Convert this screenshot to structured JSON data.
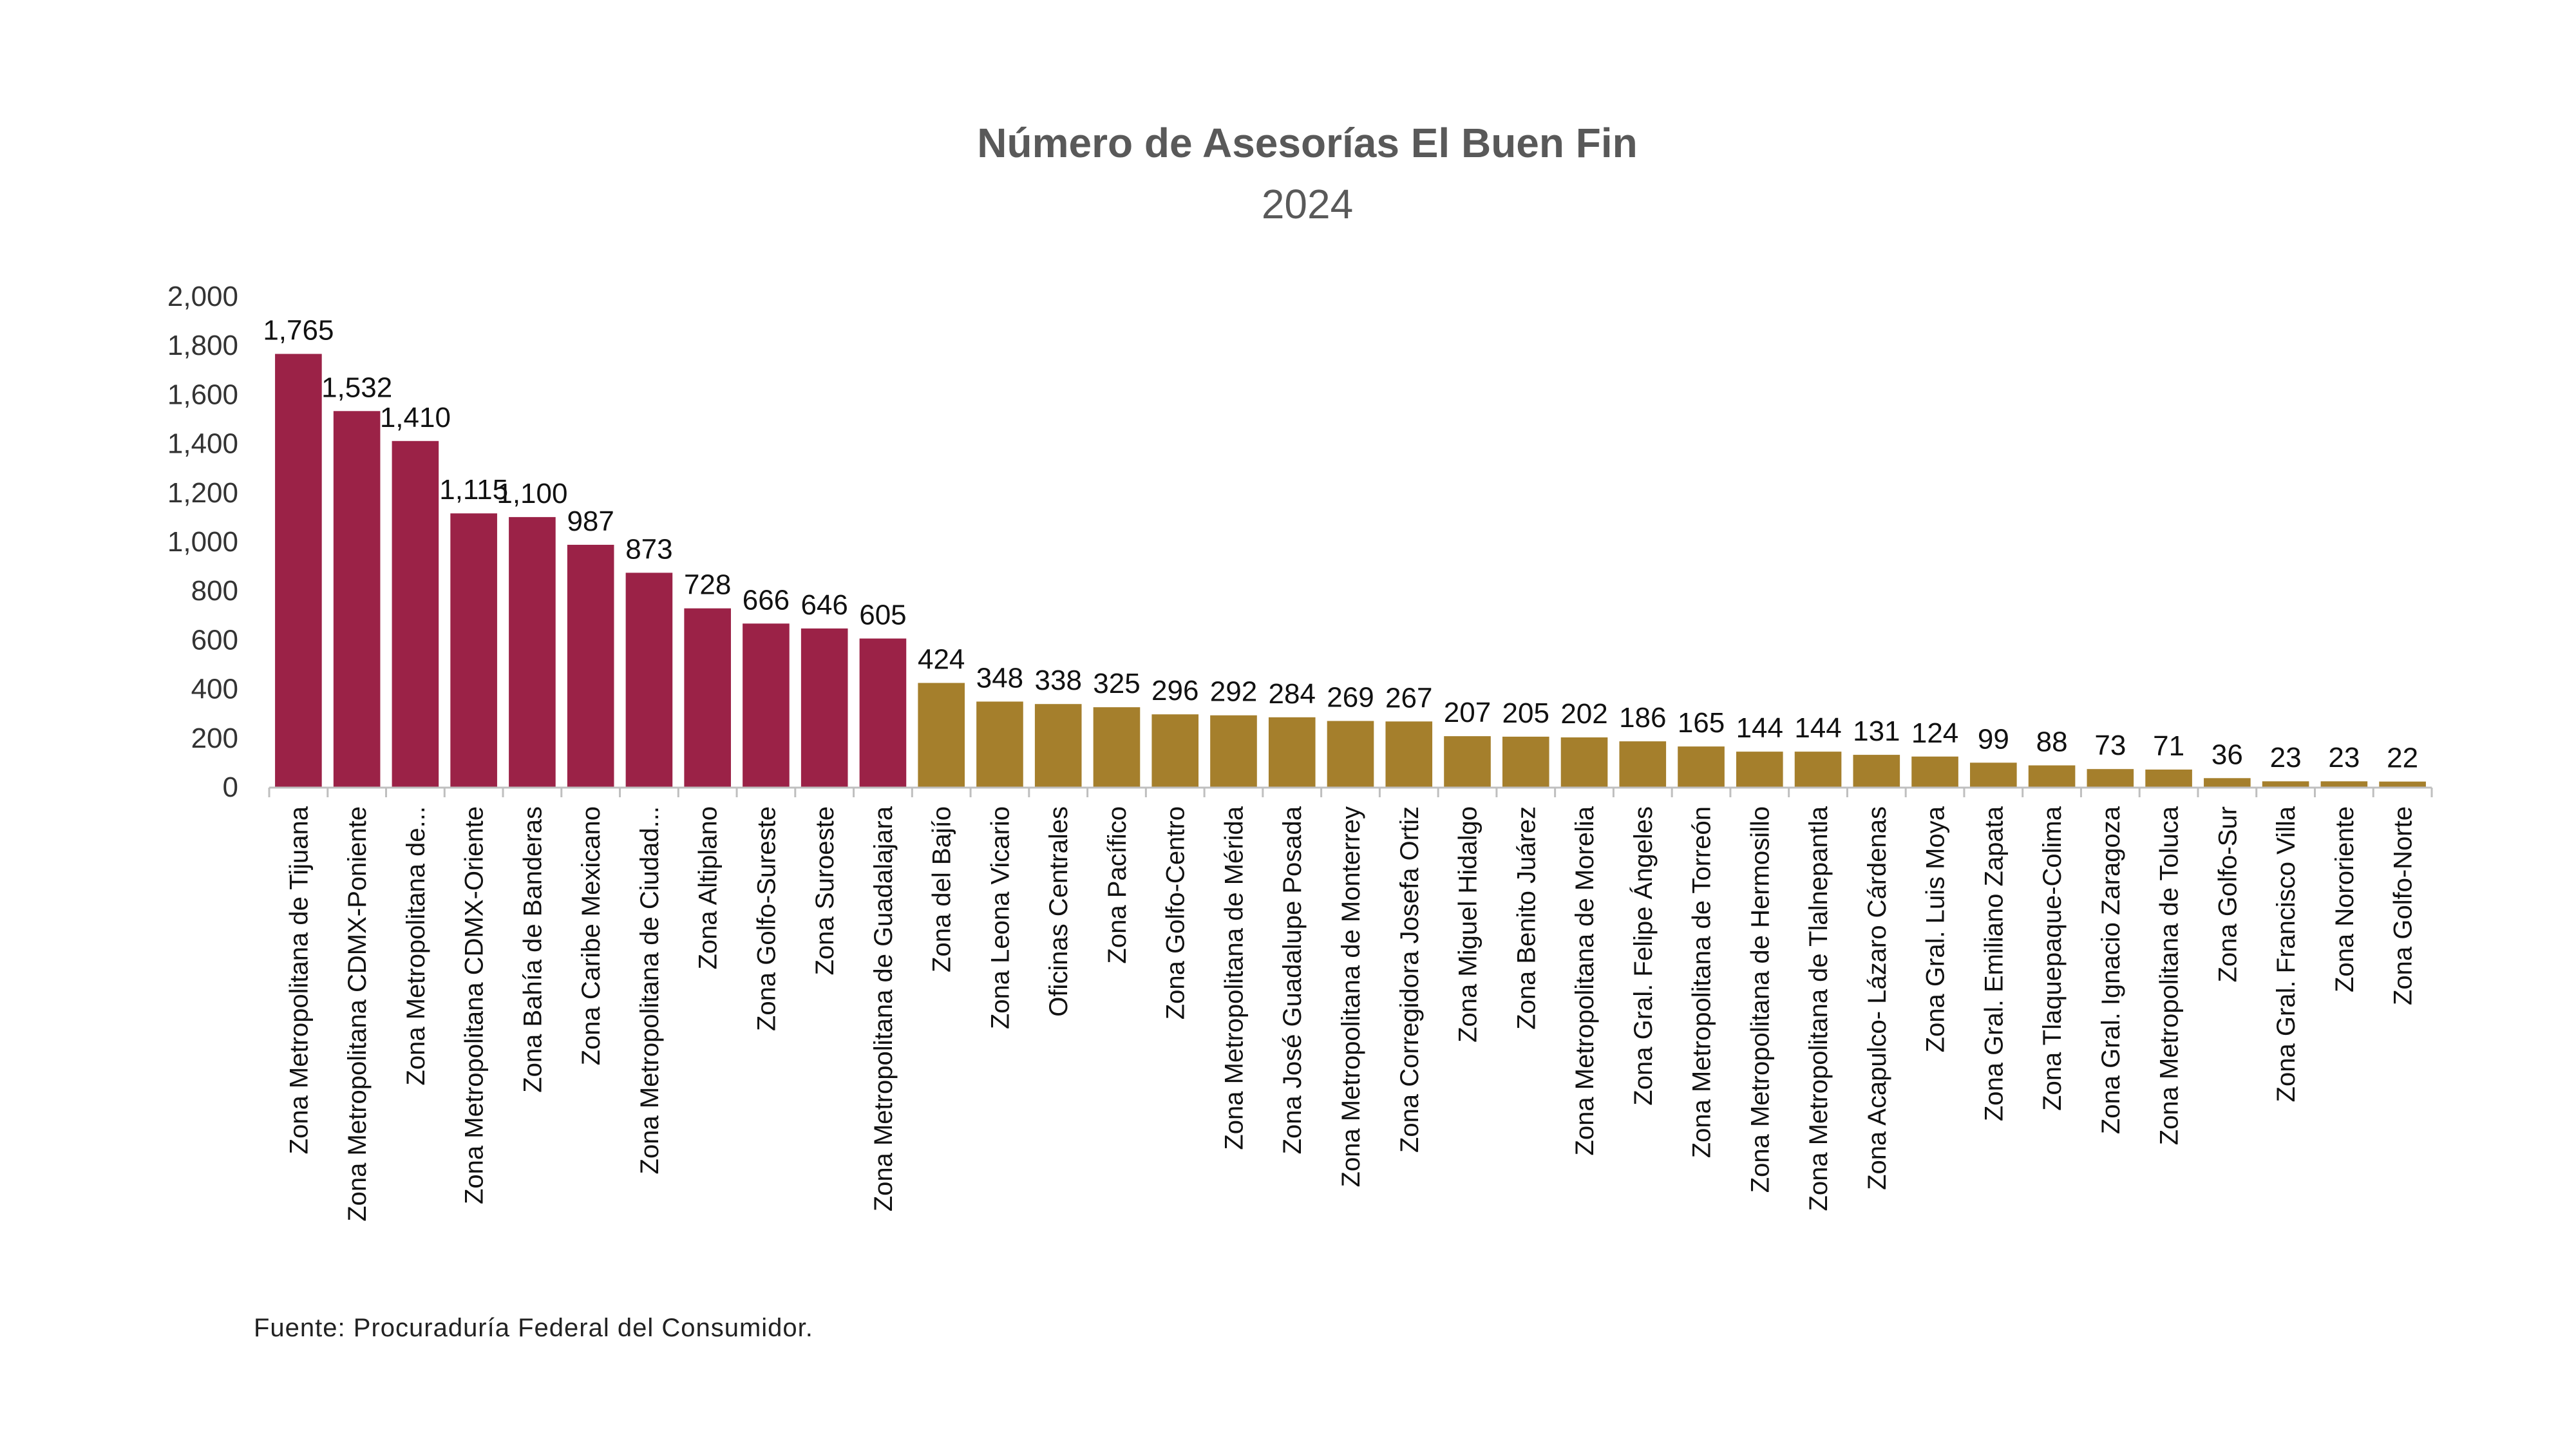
{
  "chart_data": {
    "type": "bar",
    "title": "Número de Asesorías El Buen Fin",
    "subtitle": "2024",
    "xlabel": "",
    "ylabel": "",
    "ylim": [
      0,
      2000
    ],
    "yticks": [
      "0",
      "200",
      "400",
      "600",
      "800",
      "1,000",
      "1,200",
      "1,400",
      "1,600",
      "1,800",
      "2,000"
    ],
    "grid": false,
    "colors": {
      "highlight": "#9b2247",
      "standard": "#a57f2c"
    },
    "categories": [
      "Zona Metropolitana de Tijuana",
      "Zona Metropolitana CDMX-Poniente",
      "Zona Metropolitana de...",
      "Zona Metropolitana CDMX-Oriente",
      "Zona Bahía de Banderas",
      "Zona Caribe Mexicano",
      "Zona Metropolitana de Ciudad...",
      "Zona Altiplano",
      "Zona Golfo-Sureste",
      "Zona Suroeste",
      "Zona Metropolitana de Guadalajara",
      "Zona del Bajío",
      "Zona Leona Vicario",
      "Oficinas Centrales",
      "Zona Pacífico",
      "Zona Golfo-Centro",
      "Zona Metropolitana de Mérida",
      "Zona José Guadalupe Posada",
      "Zona Metropolitana de Monterrey",
      "Zona Corregidora Josefa Ortiz",
      "Zona Miguel Hidalgo",
      "Zona Benito Juárez",
      "Zona Metropolitana de Morelia",
      "Zona Gral. Felipe Ángeles",
      "Zona Metropolitana de Torreón",
      "Zona Metropolitana de Hermosillo",
      "Zona Metropolitana de Tlalnepantla",
      "Zona Acapulco- Lázaro Cárdenas",
      "Zona Gral. Luis Moya",
      "Zona Gral. Emiliano Zapata",
      "Zona Tlaquepaque-Colima",
      "Zona Gral. Ignacio Zaragoza",
      "Zona Metropolitana de Toluca",
      "Zona Golfo-Sur",
      "Zona Gral. Francisco Villa",
      "Zona Nororiente",
      "Zona Golfo-Norte"
    ],
    "values": [
      1765,
      1532,
      1410,
      1115,
      1100,
      987,
      873,
      728,
      666,
      646,
      605,
      424,
      348,
      338,
      325,
      296,
      292,
      284,
      269,
      267,
      207,
      205,
      202,
      186,
      165,
      144,
      144,
      131,
      124,
      99,
      88,
      73,
      71,
      36,
      23,
      23,
      22
    ],
    "value_labels": [
      "1,765",
      "1,532",
      "1,410",
      "1,115",
      "1,100",
      "987",
      "873",
      "728",
      "666",
      "646",
      "605",
      "424",
      "348",
      "338",
      "325",
      "296",
      "292",
      "284",
      "269",
      "267",
      "207",
      "205",
      "202",
      "186",
      "165",
      "144",
      "144",
      "131",
      "124",
      "99",
      "88",
      "73",
      "71",
      "36",
      "23",
      "23",
      "22"
    ],
    "highlight_count": 11
  },
  "source": "Fuente:  Procuraduría   Federal del  Consumidor."
}
